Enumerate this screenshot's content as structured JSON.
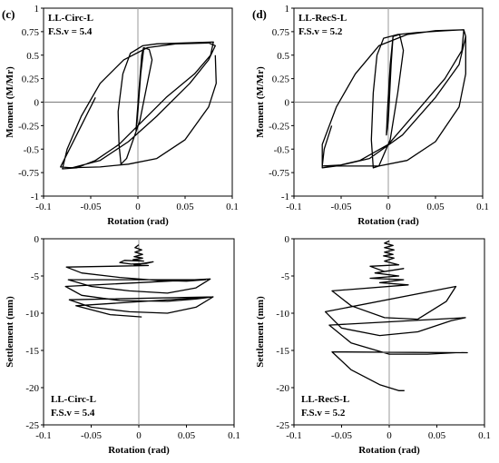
{
  "chart_data": [
    {
      "panel_label": "(c)",
      "type": "line",
      "annotation": [
        "LL-Circ-L",
        "F.S.v = 5.4"
      ],
      "xlabel": "Rotation  (rad)",
      "ylabel": "Moment  (M/Mr)",
      "xlim": [
        -0.1,
        0.1
      ],
      "ylim": [
        -1,
        1
      ],
      "xticks": [
        "-0.1",
        "-0.05",
        "0",
        "0.05",
        "0.1"
      ],
      "yticks": [
        "1",
        "0.75",
        "0.5",
        "0.25",
        "0",
        "-0.25",
        "-0.5",
        "-0.75",
        "-1"
      ],
      "series": [
        {
          "points": [
            [
              0,
              0
            ],
            [
              0.002,
              0.2
            ],
            [
              0.004,
              0.45
            ],
            [
              0.006,
              0.55
            ],
            [
              0.003,
              0.3
            ],
            [
              0,
              -0.1
            ],
            [
              -0.002,
              -0.3
            ],
            [
              -0.001,
              -0.15
            ],
            [
              0.001,
              0.1
            ],
            [
              0.004,
              0.5
            ],
            [
              0.006,
              0.58
            ],
            [
              0.012,
              0.56
            ],
            [
              0.015,
              0.45
            ],
            [
              0.01,
              0.2
            ],
            [
              0.002,
              -0.2
            ],
            [
              -0.012,
              -0.6
            ],
            [
              -0.018,
              -0.66
            ],
            [
              -0.02,
              -0.45
            ],
            [
              -0.021,
              -0.1
            ],
            [
              -0.016,
              0.3
            ],
            [
              -0.008,
              0.52
            ],
            [
              0.005,
              0.6
            ],
            [
              0.02,
              0.62
            ],
            [
              0.05,
              0.63
            ],
            [
              0.08,
              0.64
            ],
            [
              0.077,
              0.5
            ],
            [
              0.06,
              0.3
            ],
            [
              0.03,
              0.05
            ],
            [
              0.005,
              -0.2
            ],
            [
              -0.02,
              -0.45
            ],
            [
              -0.045,
              -0.62
            ],
            [
              -0.065,
              -0.7
            ],
            [
              -0.08,
              -0.71
            ],
            [
              -0.075,
              -0.5
            ],
            [
              -0.06,
              -0.15
            ],
            [
              -0.04,
              0.2
            ],
            [
              -0.015,
              0.45
            ],
            [
              0.01,
              0.58
            ],
            [
              0.04,
              0.62
            ],
            [
              0.075,
              0.63
            ],
            [
              0.082,
              0.6
            ],
            [
              0.075,
              0.45
            ],
            [
              0.055,
              0.2
            ],
            [
              0.02,
              -0.15
            ],
            [
              -0.01,
              -0.42
            ],
            [
              -0.04,
              -0.62
            ],
            [
              -0.07,
              -0.7
            ],
            [
              -0.082,
              -0.69
            ],
            [
              -0.075,
              -0.55
            ],
            [
              -0.06,
              -0.25
            ],
            [
              -0.045,
              0.05
            ]
          ]
        },
        {
          "points": [
            [
              -0.075,
              -0.7
            ],
            [
              -0.04,
              -0.69
            ],
            [
              -0.01,
              -0.66
            ],
            [
              0.02,
              -0.6
            ],
            [
              0.05,
              -0.4
            ],
            [
              0.075,
              -0.05
            ],
            [
              0.083,
              0.2
            ],
            [
              0.082,
              0.5
            ]
          ]
        }
      ]
    },
    {
      "panel_label": "(d)",
      "type": "line",
      "annotation": [
        "LL-RecS-L",
        "F.S.v = 5.2"
      ],
      "xlabel": "Rotation  (rad)",
      "ylabel": "Moment  (M/Mr)",
      "xlim": [
        -0.1,
        0.1
      ],
      "ylim": [
        -1,
        1
      ],
      "xticks": [
        "-0.1",
        "-0.05",
        "0",
        "0.05",
        "0.1"
      ],
      "yticks": [
        "1",
        "0.75",
        "0.5",
        "0.25",
        "0",
        "-0.25",
        "-0.5",
        "-0.75",
        "-1"
      ],
      "series": [
        {
          "points": [
            [
              0,
              0
            ],
            [
              0.002,
              0.3
            ],
            [
              0.004,
              0.6
            ],
            [
              0.005,
              0.7
            ],
            [
              0.003,
              0.4
            ],
            [
              0,
              -0.2
            ],
            [
              -0.002,
              -0.35
            ],
            [
              -0.001,
              -0.1
            ],
            [
              0.002,
              0.4
            ],
            [
              0.005,
              0.7
            ],
            [
              0.012,
              0.72
            ],
            [
              0.016,
              0.55
            ],
            [
              0.01,
              0.1
            ],
            [
              0.002,
              -0.4
            ],
            [
              -0.01,
              -0.68
            ],
            [
              -0.016,
              -0.7
            ],
            [
              -0.018,
              -0.4
            ],
            [
              -0.016,
              0.1
            ],
            [
              -0.012,
              0.5
            ],
            [
              -0.005,
              0.68
            ],
            [
              0.01,
              0.72
            ],
            [
              0.03,
              0.74
            ],
            [
              0.06,
              0.76
            ],
            [
              0.08,
              0.77
            ],
            [
              0.078,
              0.55
            ],
            [
              0.06,
              0.25
            ],
            [
              0.03,
              -0.1
            ],
            [
              0.0,
              -0.45
            ],
            [
              -0.03,
              -0.62
            ],
            [
              -0.055,
              -0.68
            ],
            [
              -0.07,
              -0.7
            ],
            [
              -0.07,
              -0.45
            ],
            [
              -0.055,
              -0.05
            ],
            [
              -0.035,
              0.3
            ],
            [
              -0.01,
              0.6
            ],
            [
              0.02,
              0.72
            ],
            [
              0.05,
              0.76
            ],
            [
              0.08,
              0.77
            ],
            [
              0.082,
              0.7
            ],
            [
              0.075,
              0.4
            ],
            [
              0.05,
              0.05
            ],
            [
              0.015,
              -0.35
            ],
            [
              -0.02,
              -0.6
            ],
            [
              -0.05,
              -0.67
            ],
            [
              -0.07,
              -0.68
            ],
            [
              -0.068,
              -0.5
            ],
            [
              -0.06,
              -0.25
            ]
          ]
        },
        {
          "points": [
            [
              -0.068,
              -0.68
            ],
            [
              -0.04,
              -0.68
            ],
            [
              -0.01,
              -0.68
            ],
            [
              0.02,
              -0.62
            ],
            [
              0.05,
              -0.42
            ],
            [
              0.075,
              -0.05
            ],
            [
              0.082,
              0.3
            ],
            [
              0.082,
              0.7
            ]
          ]
        }
      ]
    },
    {
      "type": "line",
      "annotation": [
        "LL-Circ-L",
        "F.S.v = 5.4"
      ],
      "xlabel": "Rotation  (rad)",
      "ylabel": "Settlement  (mm)",
      "xlim": [
        -0.1,
        0.1
      ],
      "ylim": [
        -25,
        0
      ],
      "xticks": [
        "-0.1",
        "-0.05",
        "0",
        "0.05",
        "0.1"
      ],
      "yticks": [
        "0",
        "-5",
        "-10",
        "-15",
        "-20",
        "-25"
      ],
      "series": [
        {
          "points": [
            [
              0,
              -0.8
            ],
            [
              -0.004,
              -1.2
            ],
            [
              0.003,
              -1.5
            ],
            [
              -0.004,
              -1.8
            ],
            [
              0.004,
              -2.1
            ],
            [
              -0.005,
              -2.4
            ],
            [
              0.004,
              -2.6
            ],
            [
              -0.006,
              -2.8
            ],
            [
              0.005,
              -3.0
            ],
            [
              -0.015,
              -2.9
            ],
            [
              -0.02,
              -3.2
            ],
            [
              -0.008,
              -3.4
            ],
            [
              0.008,
              -3.3
            ],
            [
              0.015,
              -3.1
            ],
            [
              -0.005,
              -3.5
            ],
            [
              0.01,
              -3.6
            ],
            [
              -0.076,
              -3.8
            ],
            [
              -0.06,
              -4.6
            ],
            [
              -0.02,
              -5.2
            ],
            [
              0.02,
              -5.6
            ],
            [
              0.05,
              -5.7
            ],
            [
              0.07,
              -5.5
            ],
            [
              -0.074,
              -5.5
            ],
            [
              -0.05,
              -6.4
            ],
            [
              -0.01,
              -7.0
            ],
            [
              0.03,
              -7.3
            ],
            [
              0.06,
              -6.6
            ],
            [
              0.075,
              -5.4
            ],
            [
              -0.077,
              -6.4
            ],
            [
              -0.06,
              -7.6
            ],
            [
              -0.02,
              -8.3
            ],
            [
              0.03,
              -8.4
            ],
            [
              0.06,
              -8.1
            ],
            [
              0.078,
              -7.8
            ],
            [
              -0.073,
              -8.2
            ],
            [
              -0.05,
              -9.2
            ],
            [
              -0.01,
              -9.8
            ],
            [
              0.03,
              -10.0
            ],
            [
              0.06,
              -9.2
            ],
            [
              0.078,
              -7.8
            ],
            [
              -0.066,
              -9.0
            ],
            [
              -0.03,
              -10.2
            ],
            [
              0.003,
              -10.5
            ]
          ]
        }
      ]
    },
    {
      "type": "line",
      "annotation": [
        "LL-RecS-L",
        "F.S.v = 5.2"
      ],
      "xlabel": "Rotation  (rad)",
      "ylabel": "Settlement  (mm)",
      "xlim": [
        -0.1,
        0.1
      ],
      "ylim": [
        -25,
        0
      ],
      "xticks": [
        "-0.1",
        "-0.05",
        "0",
        "0.05",
        "0.1"
      ],
      "yticks": [
        "0",
        "-5",
        "-10",
        "-15",
        "-20",
        "-25"
      ],
      "series": [
        {
          "points": [
            [
              0,
              -0.3
            ],
            [
              -0.005,
              -0.6
            ],
            [
              0.004,
              -0.9
            ],
            [
              -0.005,
              -1.2
            ],
            [
              0.005,
              -1.5
            ],
            [
              -0.005,
              -1.8
            ],
            [
              0.004,
              -2.1
            ],
            [
              -0.006,
              -2.3
            ],
            [
              0.005,
              -2.6
            ],
            [
              -0.005,
              -3.0
            ],
            [
              0.01,
              -3.5
            ],
            [
              -0.02,
              -3.7
            ],
            [
              -0.005,
              -4.4
            ],
            [
              0.015,
              -4.0
            ],
            [
              -0.015,
              -4.6
            ],
            [
              0.01,
              -5.0
            ],
            [
              -0.02,
              -5.3
            ],
            [
              0.015,
              -5.5
            ],
            [
              -0.01,
              -5.9
            ],
            [
              0.02,
              -6.2
            ],
            [
              -0.06,
              -7.0
            ],
            [
              -0.04,
              -9.0
            ],
            [
              -0.005,
              -10.6
            ],
            [
              0.03,
              -10.8
            ],
            [
              0.06,
              -8.4
            ],
            [
              0.07,
              -6.4
            ],
            [
              -0.067,
              -9.8
            ],
            [
              -0.05,
              -12.0
            ],
            [
              -0.01,
              -13.0
            ],
            [
              0.03,
              -12.5
            ],
            [
              0.065,
              -11.0
            ],
            [
              0.08,
              -10.6
            ],
            [
              -0.063,
              -11.6
            ],
            [
              -0.04,
              -14.0
            ],
            [
              0.0,
              -15.5
            ],
            [
              0.04,
              -15.5
            ],
            [
              0.07,
              -15.3
            ],
            [
              0.082,
              -15.3
            ],
            [
              -0.06,
              -15.2
            ],
            [
              -0.04,
              -17.6
            ],
            [
              -0.01,
              -19.6
            ],
            [
              0.01,
              -20.4
            ],
            [
              0.016,
              -20.4
            ]
          ]
        }
      ]
    }
  ]
}
